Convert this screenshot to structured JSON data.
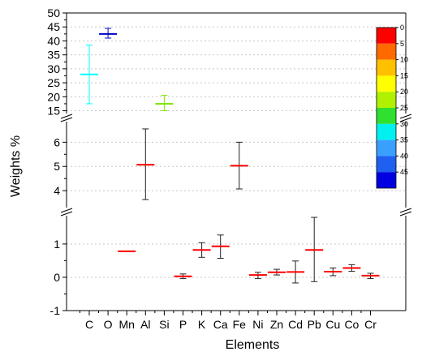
{
  "chart_data": {
    "type": "scatter",
    "xlabel": "Elements",
    "ylabel": "Weights %",
    "categories": [
      "C",
      "O",
      "Mn",
      "Al",
      "Si",
      "P",
      "K",
      "Ca",
      "Fe",
      "Ni",
      "Zn",
      "Cd",
      "Pb",
      "Cu",
      "Co",
      "Cr"
    ],
    "points": [
      {
        "element": "C",
        "value": 28,
        "err_low": 17.5,
        "err_high": 38.5,
        "color": "#00ffff"
      },
      {
        "element": "O",
        "value": 42.5,
        "err_low": 41,
        "err_high": 44.5,
        "color": "#0000cc"
      },
      {
        "element": "Mn",
        "value": 0.78,
        "err_low": null,
        "err_high": null,
        "color": "#ff0000"
      },
      {
        "element": "Al",
        "value": 5.07,
        "err_low": 3.63,
        "err_high": 6.55,
        "color": "#ff0000"
      },
      {
        "element": "Si",
        "value": 17.5,
        "err_low": 15,
        "err_high": 20.5,
        "color": "#80e600"
      },
      {
        "element": "P",
        "value": 0.03,
        "err_low": -0.04,
        "err_high": 0.1,
        "color": "#ff0000"
      },
      {
        "element": "K",
        "value": 0.82,
        "err_low": 0.6,
        "err_high": 1.04,
        "color": "#ff0000"
      },
      {
        "element": "Ca",
        "value": 0.93,
        "err_low": 0.57,
        "err_high": 1.27,
        "color": "#ff0000"
      },
      {
        "element": "Fe",
        "value": 5.03,
        "err_low": 4.07,
        "err_high": 6.0,
        "color": "#ff0000"
      },
      {
        "element": "Ni",
        "value": 0.07,
        "err_low": -0.04,
        "err_high": 0.15,
        "color": "#ff0000"
      },
      {
        "element": "Zn",
        "value": 0.15,
        "err_low": 0.07,
        "err_high": 0.24,
        "color": "#ff0000"
      },
      {
        "element": "Cd",
        "value": 0.16,
        "err_low": -0.17,
        "err_high": 0.49,
        "color": "#ff0000"
      },
      {
        "element": "Pb",
        "value": 0.82,
        "err_low": -0.13,
        "err_high": 1.8,
        "color": "#ff0000"
      },
      {
        "element": "Cu",
        "value": 0.17,
        "err_low": 0.05,
        "err_high": 0.28,
        "color": "#ff0000"
      },
      {
        "element": "Co",
        "value": 0.28,
        "err_low": 0.18,
        "err_high": 0.38,
        "color": "#ff0000"
      },
      {
        "element": "Cr",
        "value": 0.05,
        "err_low": -0.04,
        "err_high": 0.12,
        "color": "#ff0000"
      }
    ],
    "y_segments": [
      {
        "ylim": [
          14,
          50
        ],
        "ticks": [
          "15",
          "20",
          "25",
          "30",
          "35",
          "40",
          "45",
          "50"
        ]
      },
      {
        "ylim": [
          3.3,
          6.85
        ],
        "ticks": [
          "4",
          "5",
          "6"
        ]
      },
      {
        "ylim": [
          -1,
          1.85
        ],
        "ticks": [
          "-1",
          "0",
          "1"
        ]
      }
    ],
    "grid": true,
    "colorbar": {
      "placement": "top-right",
      "labels": [
        "0",
        "5",
        "10",
        "15",
        "20",
        "25",
        "30",
        "35",
        "40",
        "45"
      ],
      "colors": [
        "#ff0000",
        "#ff6a00",
        "#ffc000",
        "#ffff00",
        "#b0f000",
        "#30e030",
        "#00f0f0",
        "#3aa0ff",
        "#2060f0",
        "#0000e0"
      ]
    }
  }
}
